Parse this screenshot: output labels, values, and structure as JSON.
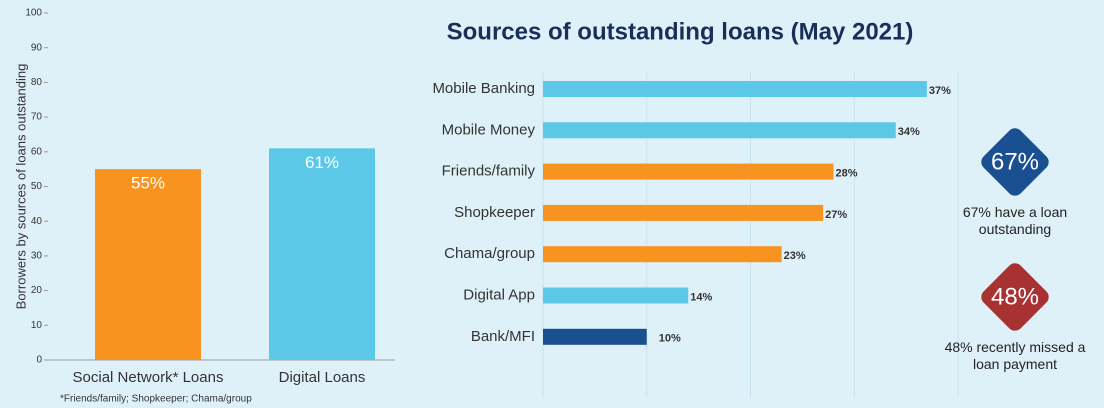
{
  "chart_data": [
    {
      "type": "bar",
      "orientation": "vertical",
      "ylabel": "Borrowers by sources of loans outstanding",
      "categories": [
        "Social Network* Loans",
        "Digital Loans"
      ],
      "values": [
        55,
        61
      ],
      "value_labels": [
        "55%",
        "61%"
      ],
      "colors": [
        "#f7931e",
        "#5bc8e8"
      ],
      "ylim": [
        0,
        100
      ],
      "yticks": [
        0,
        10,
        20,
        30,
        40,
        50,
        60,
        70,
        80,
        90,
        100
      ],
      "footnote": "*Friends/family; Shopkeeper; Chama/group"
    },
    {
      "type": "bar",
      "orientation": "horizontal",
      "title": "Sources of outstanding loans (May 2021)",
      "categories": [
        "Mobile Banking",
        "Mobile Money",
        "Friends/family",
        "Shopkeeper",
        "Chama/group",
        "Digital App",
        "Bank/MFI"
      ],
      "values": [
        37,
        34,
        28,
        27,
        23,
        14,
        10
      ],
      "value_labels": [
        "37%",
        "34%",
        "28%",
        "27%",
        "23%",
        "14%",
        "10%"
      ],
      "colors": [
        "#5bc8e8",
        "#5bc8e8",
        "#f7931e",
        "#f7931e",
        "#f7931e",
        "#5bc8e8",
        "#1a4f91"
      ],
      "xlim": [
        0,
        40
      ],
      "xticks": [
        0,
        10,
        20,
        30,
        40
      ],
      "grid": true
    }
  ],
  "callouts": [
    {
      "badge": "67%",
      "caption": "67% have a loan outstanding",
      "color": "#1a4f91"
    },
    {
      "badge": "48%",
      "caption": "48% recently missed a loan payment",
      "color": "#a83232"
    }
  ]
}
